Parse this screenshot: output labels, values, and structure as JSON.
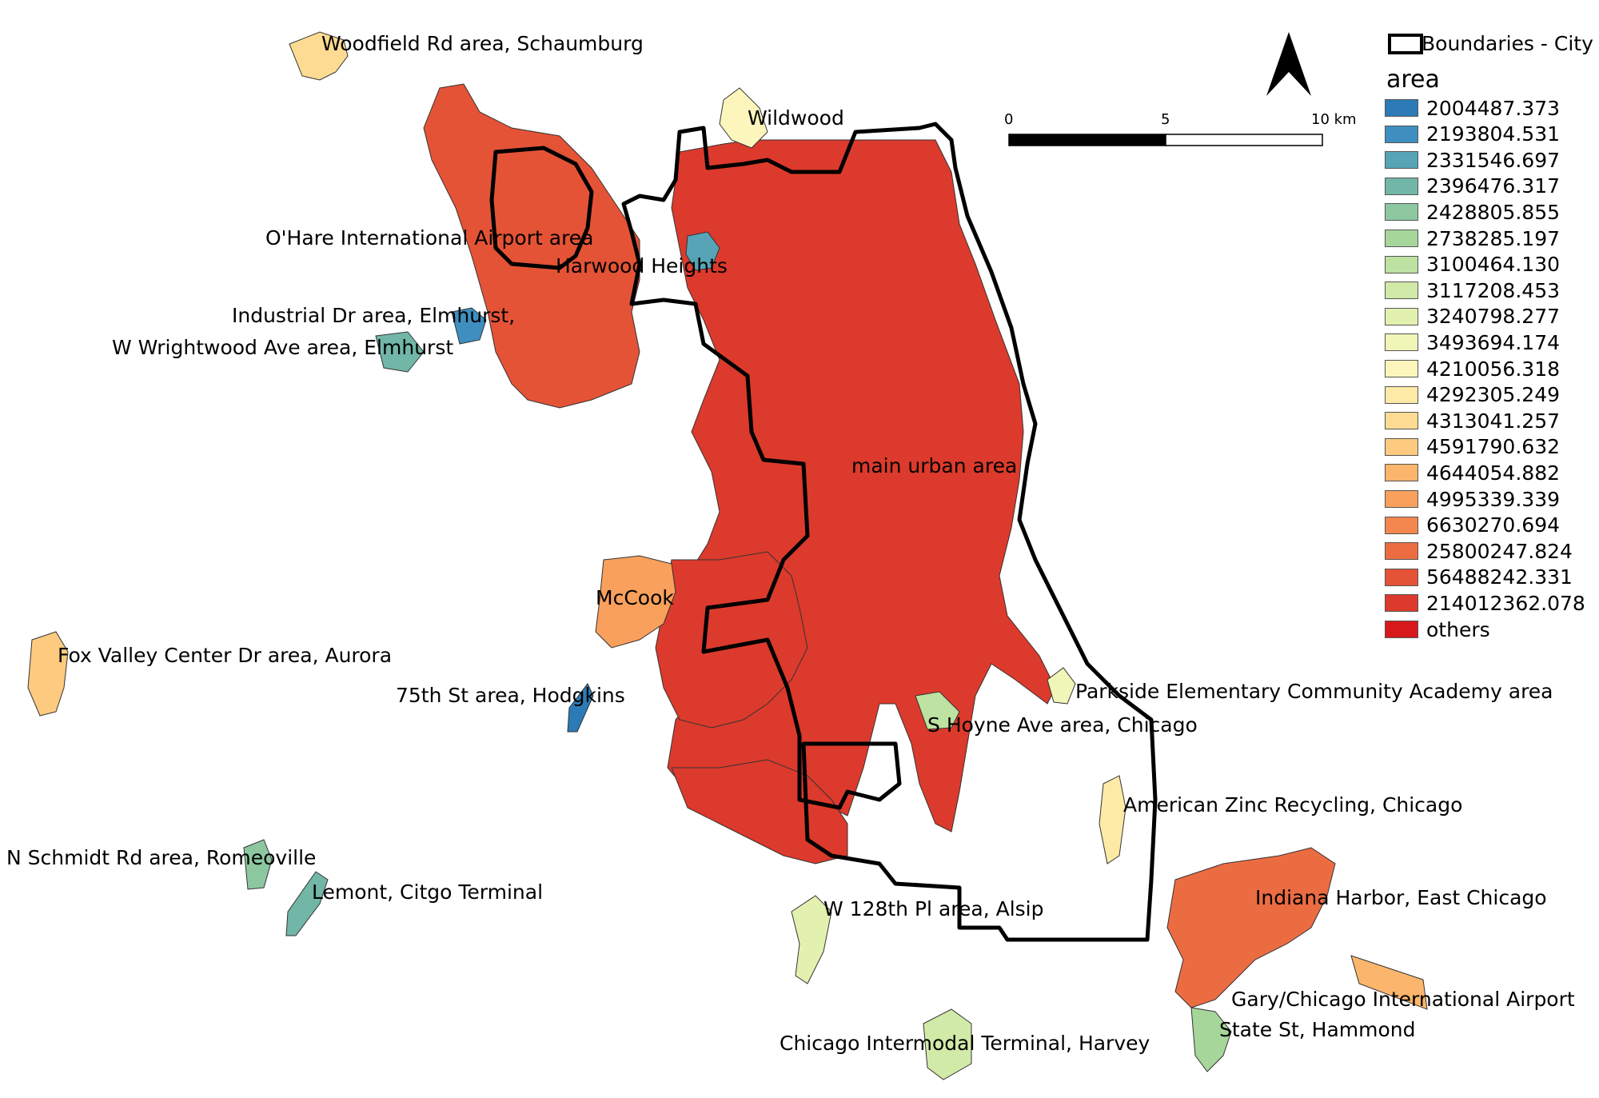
{
  "map": {
    "north_arrow_icon": "north-arrow-icon",
    "scale_bar": {
      "ticks": [
        "0",
        "5",
        "10 km"
      ]
    },
    "legend": {
      "boundary_label": "Boundaries - City",
      "title": "area",
      "classes": [
        {
          "label": "2004487.373",
          "color": "#2c7bb6"
        },
        {
          "label": "2193804.531",
          "color": "#3e8fbf"
        },
        {
          "label": "2331546.697",
          "color": "#56a4b5"
        },
        {
          "label": "2396476.317",
          "color": "#72b6a8"
        },
        {
          "label": "2428805.855",
          "color": "#8dc7a0"
        },
        {
          "label": "2738285.197",
          "color": "#a6d69a"
        },
        {
          "label": "3100464.130",
          "color": "#bde2a1"
        },
        {
          "label": "3117208.453",
          "color": "#d1eaa8"
        },
        {
          "label": "3240798.277",
          "color": "#e3f1b0"
        },
        {
          "label": "3493694.174",
          "color": "#f0f5b8"
        },
        {
          "label": "4210056.318",
          "color": "#fcf6bd"
        },
        {
          "label": "4292305.249",
          "color": "#fdeaa6"
        },
        {
          "label": "4313041.257",
          "color": "#fddb92"
        },
        {
          "label": "4591790.632",
          "color": "#fdca80"
        },
        {
          "label": "4644054.882",
          "color": "#fbb56c"
        },
        {
          "label": "4995339.339",
          "color": "#f8a05c"
        },
        {
          "label": "6630270.694",
          "color": "#f3874e"
        },
        {
          "label": "25800247.824",
          "color": "#ec6c42"
        },
        {
          "label": "56488242.331",
          "color": "#e45336"
        },
        {
          "label": "214012362.078",
          "color": "#dc3a2c"
        },
        {
          "label": "others",
          "color": "#d7191c"
        }
      ]
    },
    "places": [
      {
        "label": "Woodfield Rd area, Schaumburg",
        "color": "#fddb92"
      },
      {
        "label": "Wildwood",
        "color": "#fcf6bd"
      },
      {
        "label": "O'Hare International Airport area",
        "color": "#e45336"
      },
      {
        "label": "Harwood Heights",
        "color": "#56a4b5"
      },
      {
        "label": "Industrial Dr area, Elmhurst,",
        "color": "#3e8fbf"
      },
      {
        "label": "W Wrightwood Ave area, Elmhurst",
        "color": "#72b6a8"
      },
      {
        "label": "main urban area",
        "color": "#dc3a2c"
      },
      {
        "label": "McCook",
        "color": "#f8a05c"
      },
      {
        "label": "Fox Valley Center Dr area, Aurora",
        "color": "#fdca80"
      },
      {
        "label": "75th St area, Hodgkins",
        "color": "#2c7bb6"
      },
      {
        "label": "Parkside Elementary Community Academy area",
        "color": "#f0f5b8"
      },
      {
        "label": "S Hoyne Ave area, Chicago",
        "color": "#bde2a1"
      },
      {
        "label": "American Zinc Recycling, Chicago",
        "color": "#fdeaa6"
      },
      {
        "label": "N Schmidt Rd area, Romeoville",
        "color": "#8dc7a0"
      },
      {
        "label": "Lemont, Citgo Terminal",
        "color": "#72b6a8"
      },
      {
        "label": "W 128th Pl area, Alsip",
        "color": "#e3f1b0"
      },
      {
        "label": "Indiana Harbor, East Chicago",
        "color": "#ec6c42"
      },
      {
        "label": "Gary/Chicago International Airport",
        "color": "#fbb56c"
      },
      {
        "label": "State St, Hammond",
        "color": "#a6d69a"
      },
      {
        "label": "Chicago Intermodal Terminal, Harvey",
        "color": "#d1eaa8"
      }
    ]
  }
}
